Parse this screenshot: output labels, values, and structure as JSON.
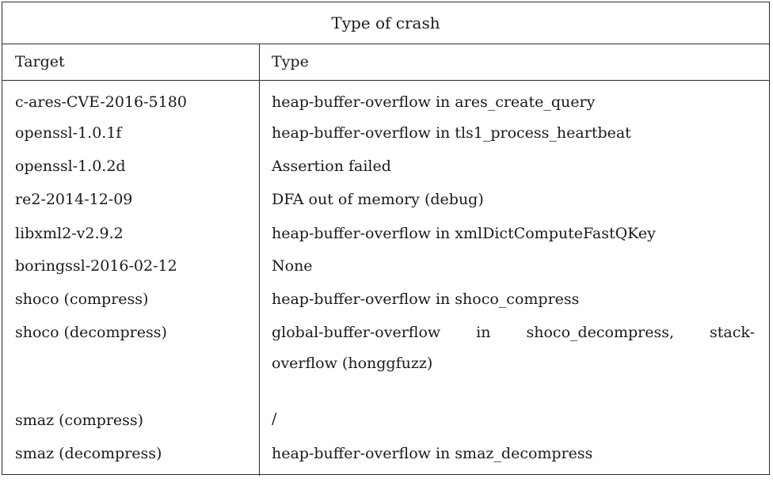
{
  "table": {
    "title": "Type of crash",
    "headers": {
      "target": "Target",
      "type": "Type"
    },
    "rows": [
      {
        "target": "c-ares-CVE-2016-5180",
        "type": "heap-buffer-overflow in ares_create_query"
      },
      {
        "target": "openssl-1.0.1f",
        "type": "heap-buffer-overflow in tls1_process_heartbeat"
      },
      {
        "target": "openssl-1.0.2d",
        "type": "Assertion failed"
      },
      {
        "target": "re2-2014-12-09",
        "type": "DFA out of memory (debug)"
      },
      {
        "target": "libxml2-v2.9.2",
        "type": "heap-buffer-overflow in xmlDictComputeFastQKey"
      },
      {
        "target": "boringssl-2016-02-12",
        "type": "None"
      },
      {
        "target": "shoco (compress)",
        "type": "heap-buffer-overflow in shoco_compress"
      },
      {
        "target": "shoco (decompress)",
        "type": "global-buffer-overflow in shoco_decompress, stack-",
        "type_line2": "overflow (honggfuzz)"
      },
      {
        "target": "smaz (compress)",
        "type": "/"
      },
      {
        "target": "smaz (decompress)",
        "type": "heap-buffer-overflow in smaz_decompress"
      }
    ]
  }
}
